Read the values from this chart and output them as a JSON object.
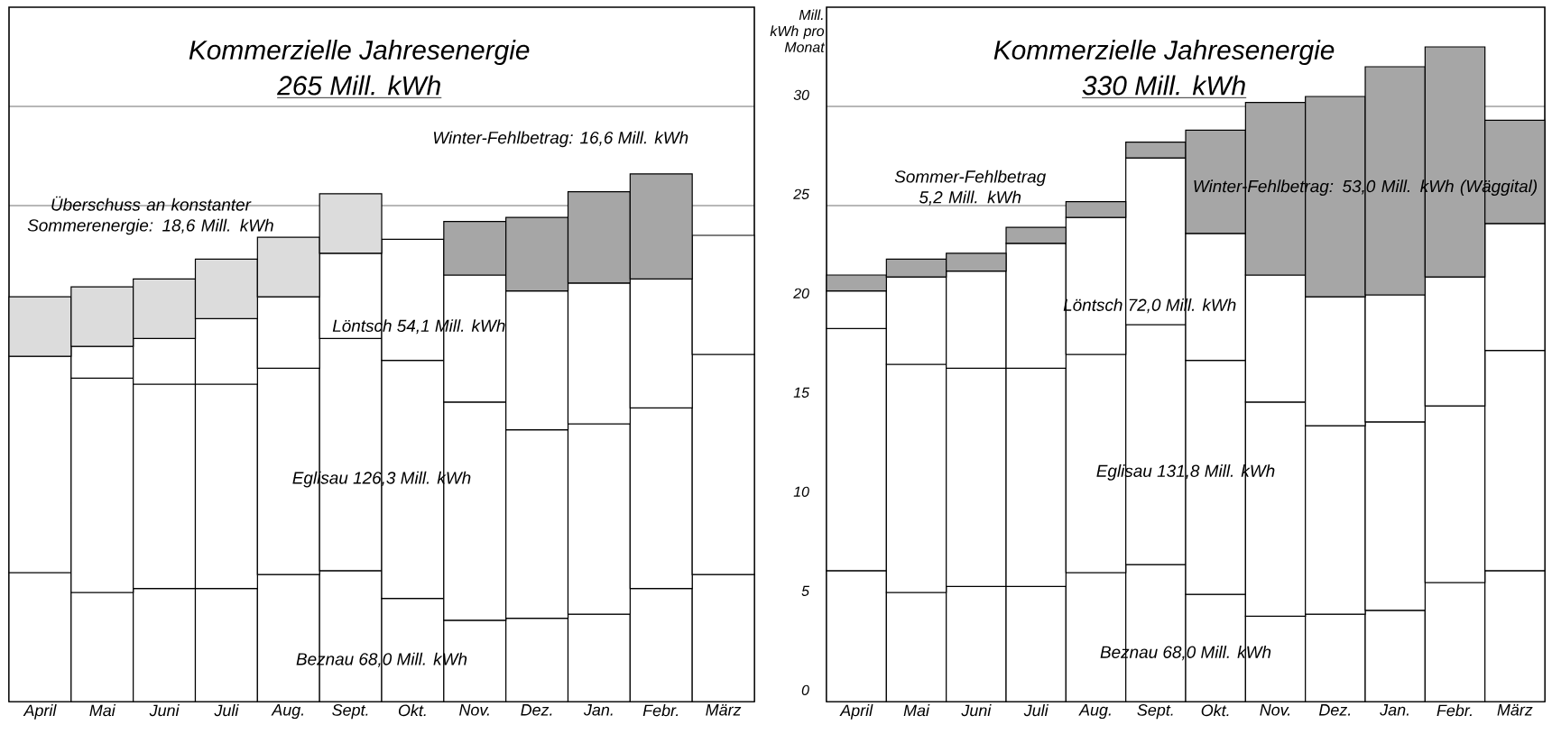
{
  "chart_data": [
    {
      "type": "bar",
      "stacked": true,
      "title": "Kommerzielle Jahresenergie",
      "subtitle": "265 Mill. kWh",
      "categories": [
        "April",
        "Mai",
        "Juni",
        "Juli",
        "Aug.",
        "Sept.",
        "Okt.",
        "Nov.",
        "Dez.",
        "Jan.",
        "Febr.",
        "März"
      ],
      "series": [
        {
          "color": "#ffffff",
          "values": [
            6.5,
            5.5,
            5.7,
            5.7,
            6.4,
            6.6,
            5.2,
            4.1,
            4.2,
            4.4,
            5.7,
            6.4
          ]
        },
        {
          "color": "#ffffff",
          "values": [
            10.9,
            10.8,
            10.3,
            10.3,
            10.4,
            11.7,
            12.0,
            11.0,
            9.5,
            9.6,
            9.1,
            11.1
          ]
        },
        {
          "color": "#ffffff",
          "values": [
            null,
            1.6,
            2.3,
            3.3,
            3.6,
            4.3,
            6.1,
            6.4,
            7.0,
            7.1,
            6.5,
            6.0
          ]
        },
        {
          "color": "#dcdcdc",
          "values": [
            3.0,
            3.0,
            3.0,
            3.0,
            3.0,
            3.0,
            null,
            null,
            null,
            null,
            null,
            null
          ]
        },
        {
          "color": "#a6a6a6",
          "values": [
            null,
            null,
            null,
            null,
            null,
            null,
            null,
            2.7,
            3.7,
            4.6,
            5.3,
            null
          ]
        }
      ],
      "ylim": [
        0,
        35
      ],
      "yticks": [
        0,
        5,
        10,
        15,
        20,
        25,
        30
      ],
      "grid": "y",
      "tick_labels": "x",
      "annotations": [
        "Überschuss an konstanter Sommerenergie: 18,6 Mill. kWh",
        "Winter-Fehlbetrag: 16,6 Mill. kWh",
        "Löntsch 54,1 Mill. kWh",
        "Eglisau 126,3 Mill. kWh",
        "Beznau 68,0 Mill. kWh"
      ]
    },
    {
      "type": "bar",
      "stacked": true,
      "title": "Kommerzielle Jahresenergie",
      "subtitle": "330 Mill. kWh",
      "ylabel": "Mill. kWh pro Monat",
      "categories": [
        "April",
        "Mai",
        "Juni",
        "Juli",
        "Aug.",
        "Sept.",
        "Okt.",
        "Nov.",
        "Dez.",
        "Jan.",
        "Febr.",
        "März"
      ],
      "series": [
        {
          "color": "#ffffff",
          "values": [
            6.6,
            5.5,
            5.8,
            5.8,
            6.5,
            6.9,
            5.4,
            4.3,
            4.4,
            4.6,
            6.0,
            6.6
          ]
        },
        {
          "color": "#ffffff",
          "values": [
            12.2,
            11.5,
            11.0,
            11.0,
            11.0,
            12.1,
            11.8,
            10.8,
            9.5,
            9.5,
            8.9,
            11.1
          ]
        },
        {
          "color": "#ffffff",
          "values": [
            1.9,
            4.4,
            4.9,
            6.3,
            6.9,
            8.4,
            6.4,
            6.4,
            6.5,
            6.4,
            6.5,
            6.4
          ]
        },
        {
          "color": "#a6a6a6",
          "values": [
            0.8,
            0.9,
            0.9,
            0.8,
            0.8,
            0.8,
            5.2,
            8.7,
            10.1,
            11.5,
            11.6,
            5.2
          ]
        }
      ],
      "ylim": [
        0,
        35
      ],
      "yticks": [
        0,
        5,
        10,
        15,
        20,
        25,
        30
      ],
      "grid": "y",
      "annotations": [
        "Sommer-Fehlbetrag 5,2 Mill. kWh",
        "Winter-Fehlbetrag: 53,0 Mill. kWh (Wäggital)",
        "Löntsch 72,0 Mill. kWh",
        "Eglisau 131,8 Mill. kWh",
        "Beznau 68,0 Mill. kWh"
      ]
    }
  ]
}
